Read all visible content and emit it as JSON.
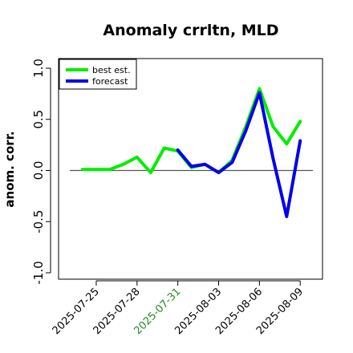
{
  "chart_data": {
    "type": "line",
    "title": "Anomaly crrltn, MLD",
    "ylabel": "anom. corr.",
    "xlabel": "",
    "ylim": [
      -1.0,
      1.0
    ],
    "yticks": [
      "-1.0",
      "-0.5",
      "0.0",
      "0.5",
      "1.0"
    ],
    "x": [
      "2025-07-24",
      "2025-07-25",
      "2025-07-26",
      "2025-07-27",
      "2025-07-28",
      "2025-07-29",
      "2025-07-30",
      "2025-07-31",
      "2025-08-01",
      "2025-08-02",
      "2025-08-03",
      "2025-08-04",
      "2025-08-05",
      "2025-08-06",
      "2025-08-07",
      "2025-08-08",
      "2025-08-09"
    ],
    "xticks": [
      {
        "label": "2025-07-25",
        "color": "#000000"
      },
      {
        "label": "2025-07-28",
        "color": "#000000"
      },
      {
        "label": "2025-07-31",
        "color": "#228B22"
      },
      {
        "label": "2025-08-03",
        "color": "#000000"
      },
      {
        "label": "2025-08-06",
        "color": "#000000"
      },
      {
        "label": "2025-08-09",
        "color": "#000000"
      }
    ],
    "zero_line": 0.0,
    "legend_position": "top-left",
    "grid": false,
    "series": [
      {
        "name": "best est.",
        "color": "#00ee00",
        "values": [
          0.01,
          0.01,
          0.01,
          0.06,
          0.13,
          -0.02,
          0.22,
          0.19,
          0.03,
          0.06,
          -0.02,
          0.1,
          0.43,
          0.8,
          0.43,
          0.26,
          0.48
        ]
      },
      {
        "name": "forecast",
        "color": "#0000ee",
        "values": [
          null,
          null,
          null,
          null,
          null,
          null,
          null,
          0.2,
          0.04,
          0.06,
          -0.02,
          0.08,
          0.39,
          0.76,
          0.12,
          -0.45,
          0.29
        ]
      }
    ]
  }
}
